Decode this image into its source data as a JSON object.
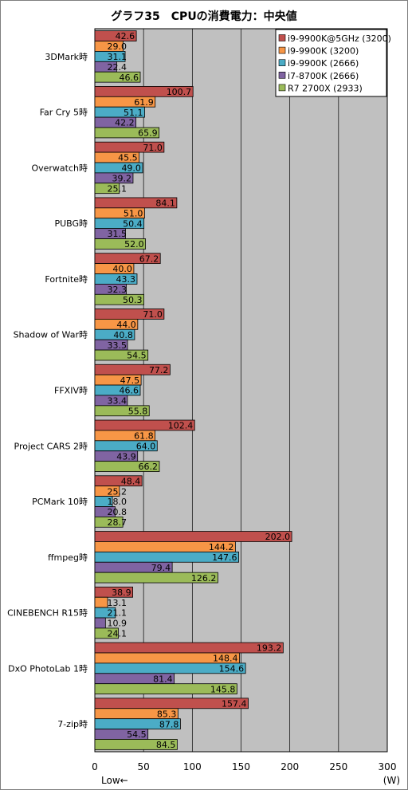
{
  "chart_data": {
    "type": "bar",
    "orientation": "horizontal",
    "title": "グラフ35　CPUの消費電力：中央値",
    "xlabel_left": "Low←",
    "xunit": "(W)",
    "xlim": [
      0,
      300
    ],
    "xticks": [
      0,
      50,
      100,
      150,
      200,
      250,
      300
    ],
    "grid": true,
    "legend_position": "top-right",
    "categories": [
      "3DMark時",
      "Far Cry 5時",
      "Overwatch時",
      "PUBG時",
      "Fortnite時",
      "Shadow of War時",
      "FFXIV時",
      "Project CARS 2時",
      "PCMark 10時",
      "ffmpeg時",
      "CINEBENCH R15時",
      "DxO PhotoLab 1時",
      "7-zip時"
    ],
    "series": [
      {
        "name": "i9-9900K@5GHz (3200)",
        "color": "#c0504d",
        "values": [
          42.6,
          100.7,
          71.0,
          84.1,
          67.2,
          71.0,
          77.2,
          102.4,
          48.4,
          202.0,
          38.9,
          193.2,
          157.4
        ],
        "labels": [
          "42.6",
          "100.7",
          "71.0",
          "84.1",
          "67.2",
          "71.0",
          "77.2",
          "102.4",
          "48.4",
          "202.0",
          "38.9",
          "193.2",
          "157.4"
        ]
      },
      {
        "name": "i9-9900K (3200)",
        "color": "#f79646",
        "values": [
          29.0,
          61.9,
          45.5,
          51.0,
          40.0,
          44.0,
          47.5,
          61.8,
          25.2,
          144.2,
          13.1,
          148.4,
          85.3
        ],
        "labels": [
          "29.0",
          "61.9",
          "45.5",
          "51.0",
          "40.0",
          "44.0",
          "47.5",
          "61.8",
          "25.2",
          "144.2",
          "13.1",
          "148.4",
          "85.3"
        ]
      },
      {
        "name": "i9-9900K (2666)",
        "color": "#4bacc6",
        "values": [
          31.1,
          51.1,
          49.0,
          50.4,
          43.3,
          40.8,
          46.6,
          64.0,
          18.0,
          147.6,
          21.1,
          154.6,
          87.8
        ],
        "labels": [
          "31.1",
          "51.1",
          "49.0",
          "50.4",
          "43.3",
          "40.8",
          "46.6",
          "64.0",
          "18.0",
          "147.6",
          "21.1",
          "154.6",
          "87.8"
        ]
      },
      {
        "name": "i7-8700K (2666)",
        "color": "#8064a2",
        "values": [
          22.4,
          42.2,
          39.2,
          31.5,
          32.3,
          33.5,
          33.4,
          43.9,
          20.8,
          79.4,
          10.9,
          81.4,
          54.5
        ],
        "labels": [
          "22.4",
          "42.2",
          "39.2",
          "31.5",
          "32.3",
          "33.5",
          "33.4",
          "43.9",
          "20.8",
          "79.4",
          "10.9",
          "81.4",
          "54.5"
        ]
      },
      {
        "name": "R7 2700X (2933)",
        "color": "#9bbb59",
        "values": [
          46.6,
          65.9,
          25.1,
          52.0,
          50.3,
          54.5,
          55.8,
          66.2,
          28.7,
          126.2,
          24.1,
          145.8,
          84.5
        ],
        "labels": [
          "46.6",
          "65.9",
          "25.1",
          "52.0",
          "50.3",
          "54.5",
          "55.8",
          "66.2",
          "28.7",
          "126.2",
          "24.1",
          "145.8",
          "84.5"
        ]
      }
    ]
  }
}
